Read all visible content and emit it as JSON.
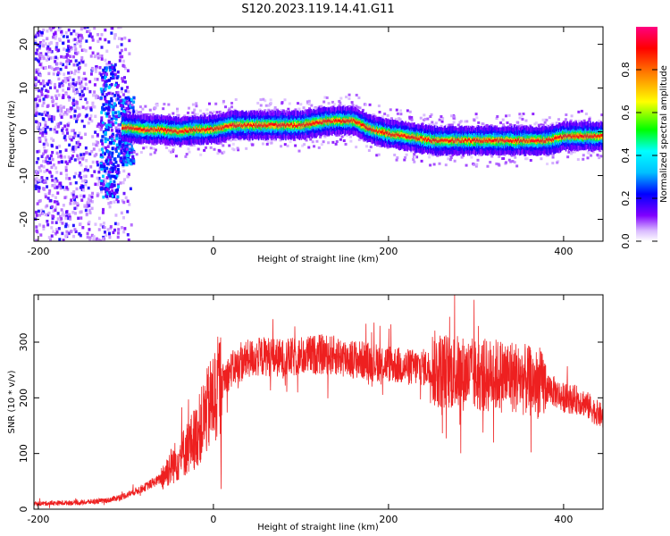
{
  "title": "S120.2023.119.14.41.G11",
  "chart_data": [
    {
      "type": "heatmap",
      "xlabel": "Height of straight line (km)",
      "ylabel": "Frequency (Hz)",
      "xlim": [
        -205,
        445
      ],
      "ylim": [
        -25,
        24
      ],
      "xticks": [
        -200,
        0,
        200,
        400
      ],
      "yticks": [
        -20,
        -10,
        0,
        10,
        20
      ],
      "colorbar": {
        "label": "Normalized spectral amplitude",
        "range": [
          0.0,
          1.0
        ],
        "ticks": [
          "0.0",
          "0.2",
          "0.4",
          "0.6",
          "0.8"
        ],
        "colors": [
          "#ffffff",
          "#8000ff",
          "#0000ff",
          "#00ffff",
          "#00ff00",
          "#ffff00",
          "#ff8000",
          "#ff0000",
          "#ff0080"
        ]
      },
      "ridge": {
        "description_points_x": [
          -100,
          -80,
          -60,
          -40,
          -20,
          0,
          20,
          50,
          100,
          130,
          160,
          180,
          200,
          220,
          250,
          300,
          350,
          380,
          400,
          445
        ],
        "description_points_y": [
          1.0,
          0.5,
          0.5,
          0.0,
          0.5,
          0.5,
          1.5,
          1.5,
          1.5,
          2.5,
          2.5,
          0.5,
          -0.5,
          -1.0,
          -2.0,
          -2.0,
          -2.0,
          -2.0,
          -1.0,
          -1.0
        ]
      }
    },
    {
      "type": "line",
      "xlabel": "Height of straight line (km)",
      "ylabel": "SNR (10 * v/v)",
      "xlim": [
        -205,
        445
      ],
      "ylim": [
        0,
        385
      ],
      "xticks": [
        -200,
        0,
        200,
        400
      ],
      "yticks": [
        0,
        100,
        200,
        300
      ],
      "color": "#ff0000",
      "envelope_x": [
        -205,
        -150,
        -120,
        -100,
        -80,
        -60,
        -50,
        -40,
        -30,
        -20,
        -10,
        0,
        10,
        20,
        30,
        40,
        60,
        80,
        100,
        120,
        140,
        160,
        180,
        200,
        220,
        240,
        260,
        280,
        300,
        320,
        340,
        360,
        380,
        400,
        420,
        445
      ],
      "envelope_y": [
        10,
        12,
        16,
        25,
        38,
        55,
        75,
        90,
        110,
        130,
        165,
        200,
        230,
        250,
        260,
        270,
        275,
        270,
        275,
        278,
        276,
        270,
        265,
        262,
        255,
        255,
        250,
        245,
        240,
        240,
        240,
        230,
        220,
        200,
        195,
        165
      ]
    }
  ]
}
